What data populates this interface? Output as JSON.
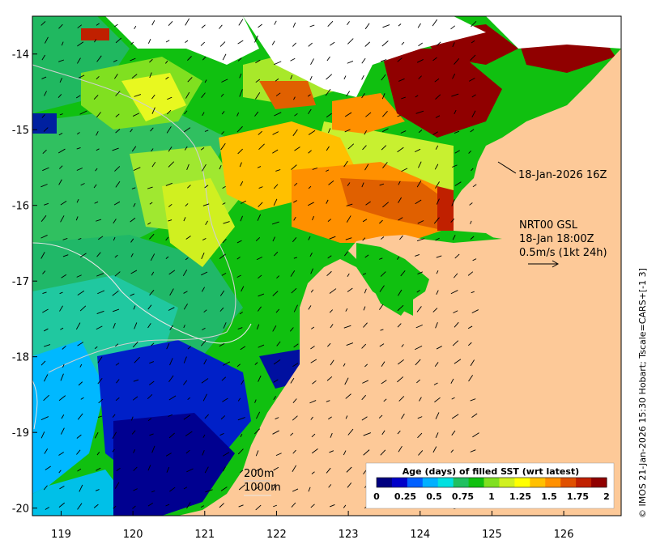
{
  "map": {
    "lon_range": [
      118.6,
      126.8
    ],
    "lat_range": [
      -20.1,
      -13.5
    ],
    "x_ticks": [
      119,
      120,
      121,
      122,
      123,
      124,
      125,
      126
    ],
    "y_ticks": [
      -14,
      -15,
      -16,
      -17,
      -18,
      -19,
      -20
    ],
    "x_tick_labels": [
      "119",
      "120",
      "121",
      "122",
      "123",
      "124",
      "125",
      "126"
    ],
    "y_tick_labels": [
      "-14",
      "-15",
      "-16",
      "-17",
      "-18",
      "-19",
      "-20"
    ],
    "colors": {
      "land": "#fdc998",
      "no_data": "#ffffff",
      "frame": "#000000",
      "contour": "#cfcfcf"
    }
  },
  "annotations": {
    "date_label": "18-Jan-2026 16Z",
    "current_title": "NRT00 GSL",
    "current_time": "18-Jan 18:00Z",
    "current_scale": "0.5m/s (1kt 24h)",
    "depth_200": "200m",
    "depth_1000": "1000m"
  },
  "colorbar": {
    "title": "Age (days) of filled SST (wrt latest)",
    "range": [
      0,
      2
    ],
    "tick_labels": [
      "0",
      "0.25",
      "0.5",
      "0.75",
      "1",
      "1.25",
      "1.5",
      "1.75",
      "2"
    ],
    "colors": [
      "#000080",
      "#0000c8",
      "#0060ff",
      "#00b0ff",
      "#00e0e0",
      "#20c060",
      "#10c010",
      "#80e020",
      "#d0f020",
      "#ffff00",
      "#ffc000",
      "#ff9000",
      "#e05000",
      "#c02000",
      "#900000"
    ]
  },
  "credit": "© IMOS 21-Jan-2026 15:30 Hobart; Tscale=CARS+[-1 3]"
}
